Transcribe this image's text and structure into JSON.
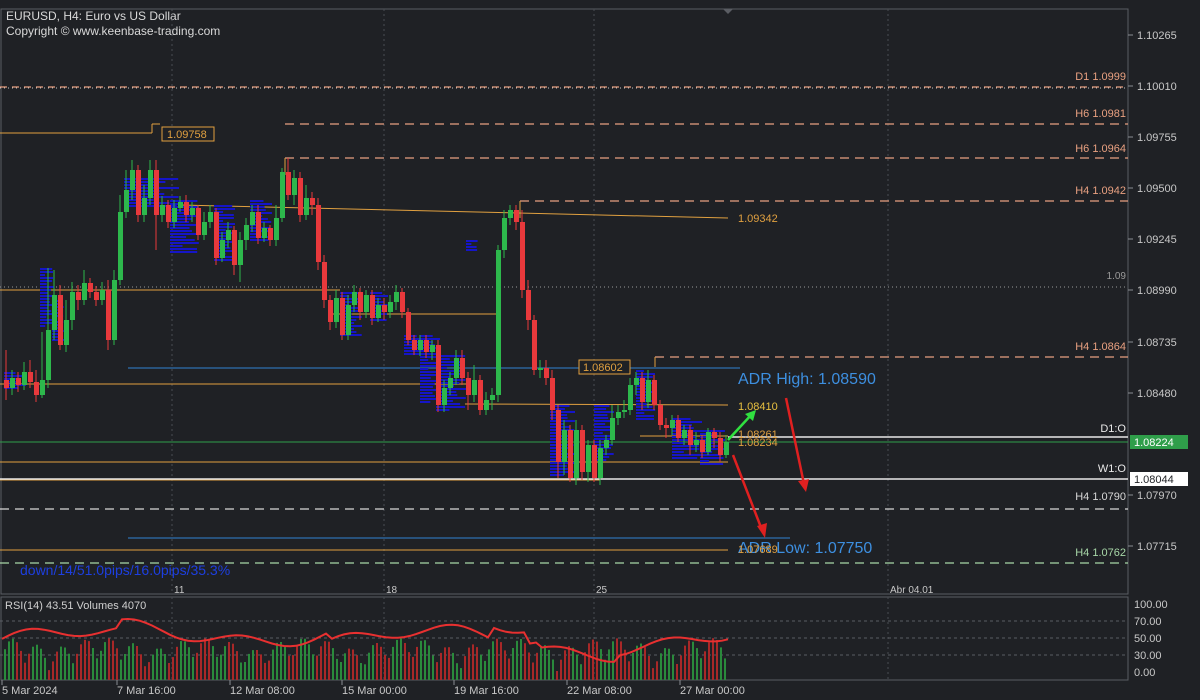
{
  "header": {
    "symbol_line": "EURUSD, H4:  Euro vs US Dollar",
    "copyright": "Copyright © www.keenbase-trading.com"
  },
  "price_axis": {
    "ticks": [
      "1.10265",
      "1.10010",
      "1.09755",
      "1.09500",
      "1.09245",
      "1.08990",
      "1.08735",
      "1.08480",
      "1.07970",
      "1.07715"
    ],
    "current_price": "1.08224",
    "w1_price": "1.08044"
  },
  "levels": {
    "d1": "D1 1.0999",
    "h6_a": "H6 1.0981",
    "h6_b": "H6 1.0964",
    "h4_a": "H4 1.0942",
    "round_09": "1.09",
    "h4_b": "H4 1.0864",
    "h4_c": "H4 1.0790",
    "h4_d": "H4 1.0762",
    "d1_open": "D1:O",
    "w1_open": "W1:O"
  },
  "annotations": {
    "box_high": "1.09758",
    "level_09342": "1.09342",
    "box_mid": "1.08602",
    "adr_high": "ADR High: 1.08590",
    "target_up": "1.08410",
    "level_a": "1.08261",
    "level_b": "1.08234",
    "adr_low": "ADR Low: 1.07750",
    "level_low": "1.07689",
    "stats": "down/14/51.0pips/16.0pips/35.3%"
  },
  "time_axis": {
    "top_labels": [
      "11",
      "18",
      "25",
      "Abr 04.01"
    ],
    "bottom_labels": [
      "5 Mar 2024",
      "7 Mar 16:00",
      "12 Mar 08:00",
      "15 Mar 00:00",
      "19 Mar 16:00",
      "22 Mar 08:00",
      "27 Mar 00:00"
    ]
  },
  "rsi_panel": {
    "title": "RSI(14) 43.51 Volumes 4070",
    "ticks": [
      "100.00",
      "70.00",
      "50.00",
      "30.00",
      "0.00"
    ]
  },
  "colors": {
    "background": "#1f2125",
    "bull": "#2db84c",
    "bear": "#e8393c",
    "profile": "#1515c8",
    "orange": "#e0a040",
    "salmon": "#e8a080",
    "adr_line": "#2f6fb0",
    "adr_text": "#3d8fe0",
    "green_line": "#2f9e4a",
    "rsi_line": "#e83030"
  }
}
